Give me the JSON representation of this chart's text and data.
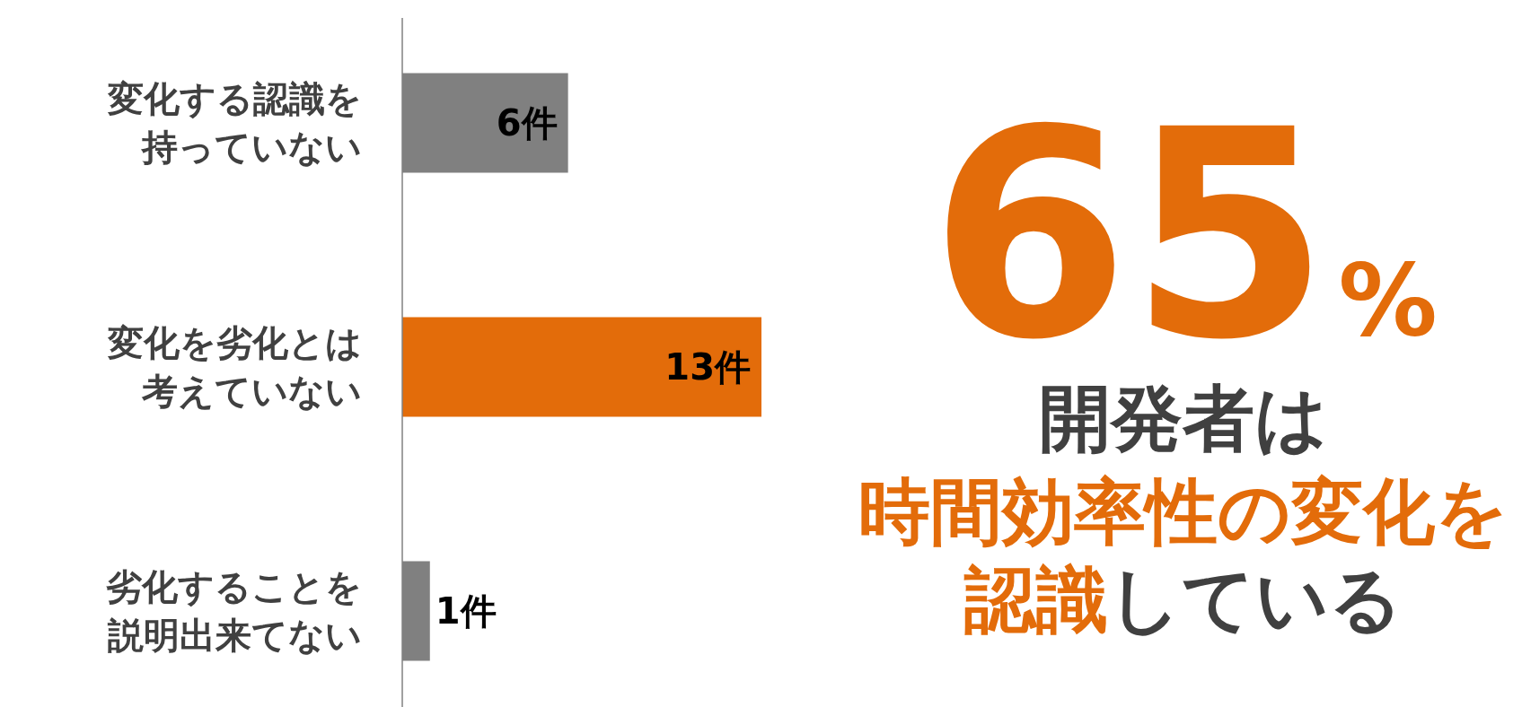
{
  "chart_data": {
    "type": "bar",
    "orientation": "horizontal",
    "categories": [
      "変化する認識を持っていない",
      "変化を劣化とは考えていない",
      "劣化することを説明出来てない"
    ],
    "values": [
      6,
      13,
      1
    ],
    "colors": [
      "#808080",
      "#e36c0a",
      "#808080"
    ],
    "value_labels": [
      "6件",
      "13件",
      "1件"
    ],
    "annotations": [
      "65%",
      "開発者は",
      "時間効率性の変化を",
      "認識",
      "している"
    ]
  }
}
